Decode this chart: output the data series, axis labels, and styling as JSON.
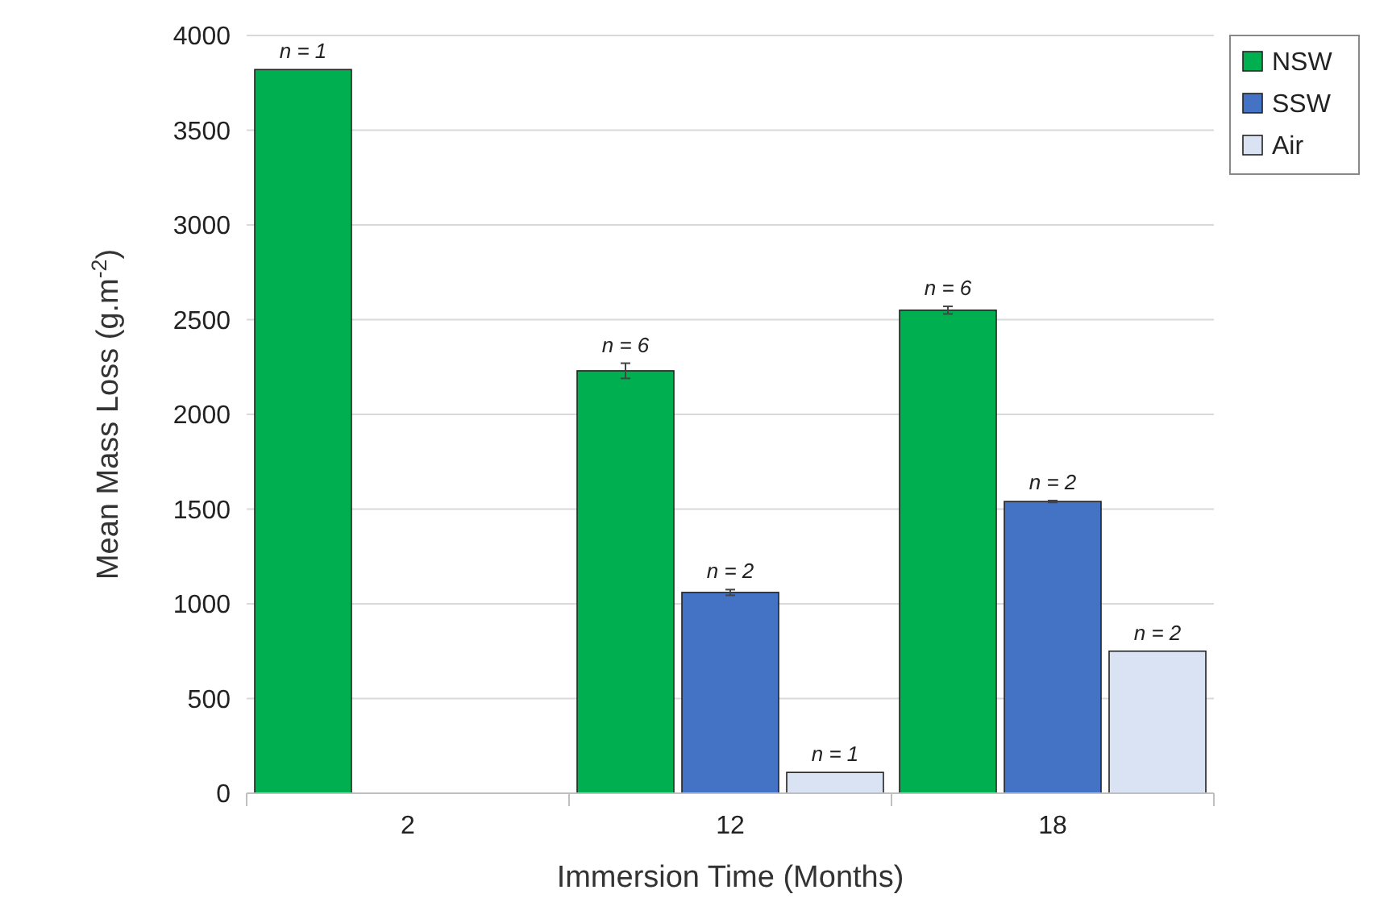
{
  "chart_data": {
    "type": "bar",
    "xlabel": "Immersion Time (Months)",
    "ylabel": "Mean Mass Loss (g.m$^{-2}$)",
    "categories": [
      "2",
      "12",
      "18"
    ],
    "series": [
      {
        "name": "NSW",
        "color": "#00b050",
        "values": [
          3820,
          2230,
          2550
        ],
        "errors": [
          null,
          40,
          20
        ]
      },
      {
        "name": "SSW",
        "color": "#4472c4",
        "values": [
          null,
          1060,
          1540
        ],
        "errors": [
          null,
          15,
          5
        ]
      },
      {
        "name": "Air",
        "color": "#dae3f3",
        "values": [
          null,
          110,
          750
        ]
      }
    ],
    "annotations": [
      "n = 1",
      "n = 6",
      "n = 2",
      "n = 1",
      "n = 6",
      "n = 2",
      "n = 2"
    ],
    "ylim": [
      0,
      4000
    ],
    "yticks": [
      0,
      500,
      1000,
      1500,
      2000,
      2500,
      3000,
      3500,
      4000
    ],
    "grid": "y",
    "legend": "top right"
  }
}
